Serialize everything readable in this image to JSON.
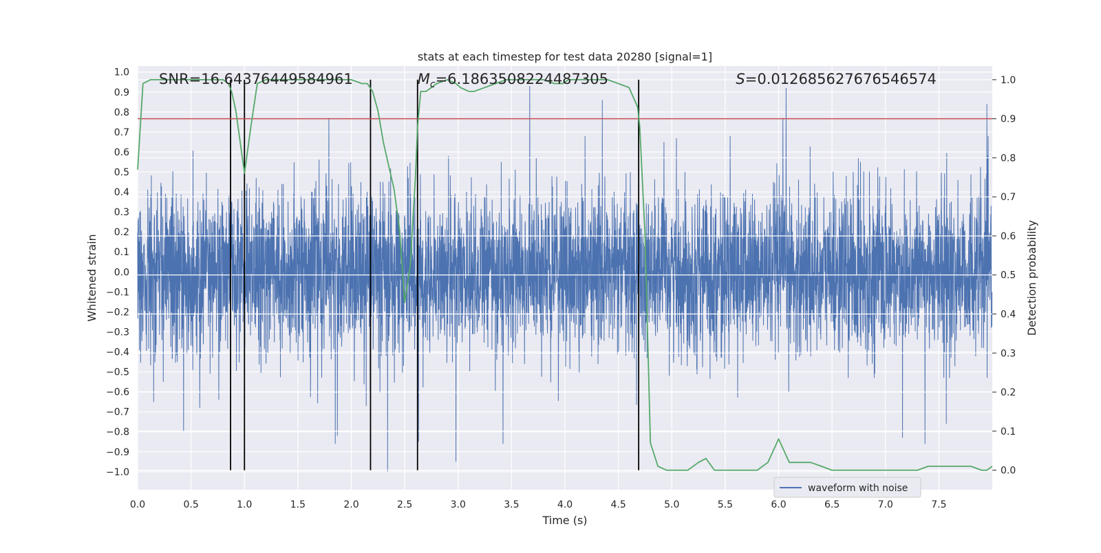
{
  "chart_data": {
    "type": "line",
    "title": "stats at each timestep for test data 20280 [signal=1]",
    "xlabel": "Time (s)",
    "ylabel_left": "Whitened strain",
    "ylabel_right": "Detection probability",
    "xlim": [
      0.0,
      8.0
    ],
    "ylim_left": [
      -1.09,
      1.03
    ],
    "ylim_right": [
      -0.05,
      1.035
    ],
    "x_ticks": [
      0.0,
      0.5,
      1.0,
      1.5,
      2.0,
      2.5,
      3.0,
      3.5,
      4.0,
      4.5,
      5.0,
      5.5,
      6.0,
      6.5,
      7.0,
      7.5
    ],
    "x_tick_labels": [
      "0.0",
      "0.5",
      "1.0",
      "1.5",
      "2.0",
      "2.5",
      "3.0",
      "3.5",
      "4.0",
      "4.5",
      "5.0",
      "5.5",
      "6.0",
      "6.5",
      "7.0",
      "7.5"
    ],
    "y_left_ticks": [
      1.0,
      0.9,
      0.8,
      0.7,
      0.6,
      0.5,
      0.4,
      0.3,
      0.2,
      0.1,
      0.0,
      -0.1,
      -0.2,
      -0.3,
      -0.4,
      -0.5,
      -0.6,
      -0.7,
      -0.8,
      -0.9,
      -1.0
    ],
    "y_left_tick_labels": [
      "1.0",
      "0.9",
      "0.8",
      "0.7",
      "0.6",
      "0.5",
      "0.4",
      "0.3",
      "0.2",
      "0.1",
      "0.0",
      "−0.1",
      "−0.2",
      "−0.3",
      "−0.4",
      "−0.5",
      "−0.6",
      "−0.7",
      "−0.8",
      "−0.9",
      "−1.0"
    ],
    "y_right_ticks": [
      1.0,
      0.9,
      0.8,
      0.7,
      0.6,
      0.5,
      0.4,
      0.3,
      0.2,
      0.1,
      0.0
    ],
    "y_right_tick_labels": [
      "1.0",
      "0.9",
      "0.8",
      "0.7",
      "0.6",
      "0.5",
      "0.4",
      "0.3",
      "0.2",
      "0.1",
      "0.0"
    ],
    "annotations": [
      {
        "text": "SNR=16.64376449584961",
        "x": 0.2
      },
      {
        "text": "Mc=6.1863508224487305",
        "x": 2.62
      },
      {
        "text": "S=0.012685627676546574",
        "x": 5.6
      }
    ],
    "threshold": {
      "value": 0.9,
      "axis": "right",
      "color": "#c44e52"
    },
    "event_markers_x": [
      0.87,
      1.0,
      2.18,
      2.62,
      4.69
    ],
    "series": [
      {
        "name": "waveform with noise",
        "axis": "left",
        "color": "#4c72b0",
        "kind": "noise",
        "sample_rate_hz": 600,
        "envelope": 0.45,
        "spikes": [
          [
            0.15,
            -0.65
          ],
          [
            0.24,
            -0.55
          ],
          [
            0.43,
            -0.8
          ],
          [
            0.76,
            -0.64
          ],
          [
            0.87,
            -0.7
          ],
          [
            1.85,
            -0.86
          ],
          [
            1.87,
            -0.82
          ],
          [
            1.79,
            0.77
          ],
          [
            2.34,
            -1.0
          ],
          [
            2.63,
            -0.85
          ],
          [
            2.98,
            -0.95
          ],
          [
            3.42,
            -0.86
          ],
          [
            3.67,
            0.93
          ],
          [
            4.35,
            0.86
          ],
          [
            6.07,
            0.92
          ],
          [
            6.04,
            0.77
          ],
          [
            7.16,
            -0.83
          ],
          [
            7.37,
            -0.86
          ],
          [
            7.57,
            -0.76
          ],
          [
            7.95,
            0.84
          ]
        ]
      },
      {
        "name": "detection probability",
        "axis": "right",
        "color": "#55a868",
        "kind": "line",
        "x": [
          0.0,
          0.05,
          0.12,
          0.2,
          0.4,
          0.6,
          0.8,
          0.85,
          0.88,
          0.92,
          1.0,
          1.06,
          1.12,
          1.2,
          1.4,
          1.6,
          1.8,
          2.0,
          2.1,
          2.15,
          2.2,
          2.25,
          2.3,
          2.35,
          2.4,
          2.45,
          2.5,
          2.55,
          2.6,
          2.62,
          2.65,
          2.7,
          2.75,
          2.8,
          2.9,
          2.98,
          3.02,
          3.1,
          3.15,
          3.25,
          3.35,
          3.45,
          3.5,
          3.6,
          3.7,
          3.8,
          3.9,
          3.98,
          4.03,
          4.1,
          4.2,
          4.3,
          4.4,
          4.5,
          4.6,
          4.68,
          4.7,
          4.75,
          4.8,
          4.87,
          4.95,
          5.05,
          5.15,
          5.25,
          5.32,
          5.4,
          5.5,
          5.6,
          5.7,
          5.8,
          5.85,
          5.9,
          5.95,
          6.0,
          6.05,
          6.1,
          6.15,
          6.2,
          6.3,
          6.4,
          6.5,
          6.6,
          6.7,
          6.8,
          6.9,
          7.0,
          7.1,
          7.2,
          7.3,
          7.4,
          7.5,
          7.6,
          7.7,
          7.8,
          7.9,
          7.95,
          8.0
        ],
        "y": [
          0.77,
          0.99,
          1.0,
          1.0,
          1.0,
          1.0,
          1.0,
          0.99,
          0.97,
          0.92,
          0.76,
          0.88,
          0.99,
          1.0,
          1.0,
          1.0,
          1.0,
          1.0,
          0.99,
          0.99,
          0.97,
          0.92,
          0.84,
          0.78,
          0.72,
          0.62,
          0.43,
          0.52,
          0.75,
          0.88,
          0.97,
          0.97,
          0.98,
          0.99,
          1.0,
          0.99,
          0.98,
          0.97,
          0.97,
          0.98,
          0.99,
          1.0,
          1.0,
          1.0,
          1.0,
          1.0,
          0.99,
          0.99,
          1.0,
          1.0,
          1.0,
          1.0,
          1.0,
          0.99,
          0.98,
          0.93,
          0.88,
          0.6,
          0.07,
          0.01,
          0.0,
          0.0,
          0.0,
          0.02,
          0.03,
          0.0,
          0.0,
          0.0,
          0.0,
          0.0,
          0.01,
          0.02,
          0.05,
          0.08,
          0.05,
          0.02,
          0.02,
          0.02,
          0.02,
          0.01,
          0.0,
          0.0,
          0.0,
          0.0,
          0.0,
          0.0,
          0.0,
          0.0,
          0.0,
          0.01,
          0.01,
          0.01,
          0.01,
          0.01,
          0.0,
          0.0,
          0.01
        ]
      }
    ],
    "legend": {
      "entries": [
        "waveform with noise"
      ],
      "placement": "lower-right"
    }
  }
}
